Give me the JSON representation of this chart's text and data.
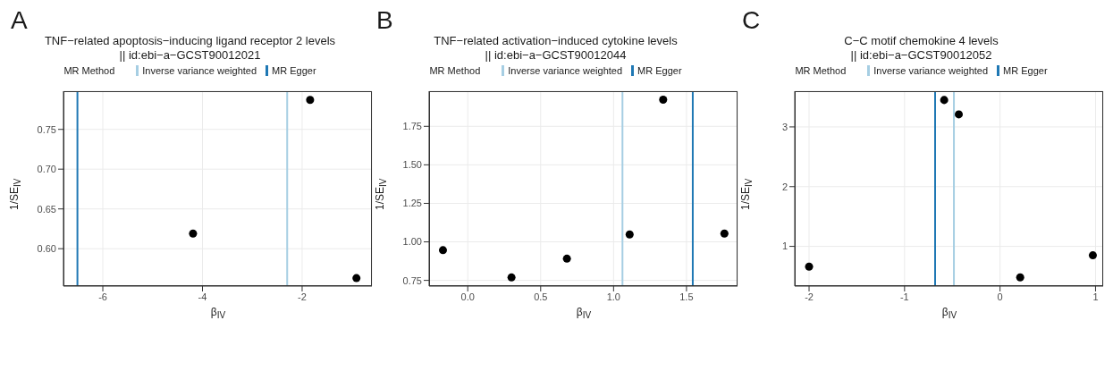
{
  "chart_data": [
    {
      "type": "scatter",
      "annotations": [
        "A"
      ],
      "title": "TNF−related apoptosis−inducing ligand receptor 2 levels",
      "subtitle": "|| id:ebi−a−GCST90012021",
      "legend_title": "MR Method",
      "legend": "top",
      "xlabel": "β$_{IV}$",
      "ylabel": "1/SE$_{IV}$",
      "x": [
        -4.19,
        -1.84,
        -0.91
      ],
      "series": [
        {
          "color": "#000000",
          "values": [
            0.619,
            0.787,
            0.563
          ]
        }
      ],
      "marker": "circle",
      "grid": true,
      "xlim": [
        -6.79,
        -0.6
      ],
      "xticks": [
        -6,
        -4,
        -2
      ],
      "ylim": [
        0.553,
        0.798
      ],
      "yticks": [
        {
          "value": 0.6,
          "label": "0.60"
        },
        0.65,
        {
          "value": 0.7,
          "label": "0.70"
        },
        0.75
      ],
      "ref_lines": [
        {
          "axis": "x",
          "value": -2.3,
          "label": "Inverse variance weighted",
          "color": "#a6cee3"
        },
        {
          "axis": "x",
          "value": -6.51,
          "label": "MR Egger",
          "color": "#1f78b4"
        }
      ]
    },
    {
      "type": "scatter",
      "annotations": [
        "B"
      ],
      "title": "TNF−related activation−induced cytokine levels",
      "subtitle": "|| id:ebi−a−GCST90012044",
      "legend_title": "MR Method",
      "legend": "top",
      "xlabel": "β$_{IV}$",
      "ylabel": "1/SE$_{IV}$",
      "x": [
        -0.17,
        0.3,
        0.68,
        1.11,
        1.34,
        1.76
      ],
      "series": [
        {
          "color": "#000000",
          "values": [
            0.946,
            0.769,
            0.891,
            1.048,
            1.923,
            1.054
          ]
        }
      ],
      "marker": "circle",
      "grid": true,
      "xlim": [
        -0.265,
        1.85
      ],
      "xticks": [
        {
          "value": 0,
          "label": "0.0"
        },
        0.5,
        {
          "value": 1,
          "label": "1.0"
        },
        1.5
      ],
      "ylim": [
        0.713,
        1.978
      ],
      "yticks": [
        0.75,
        {
          "value": 1,
          "label": "1.00"
        },
        1.25,
        {
          "value": 1.5,
          "label": "1.50"
        },
        1.75
      ],
      "ref_lines": [
        {
          "axis": "x",
          "value": 1.061,
          "label": "Inverse variance weighted",
          "color": "#a6cee3"
        },
        {
          "axis": "x",
          "value": 1.543,
          "label": "MR Egger",
          "color": "#1f78b4"
        }
      ]
    },
    {
      "type": "scatter",
      "annotations": [
        "C"
      ],
      "title": "C−C motif chemokine 4 levels",
      "subtitle": "|| id:ebi−a−GCST90012052",
      "legend_title": "MR Method",
      "legend": "top",
      "xlabel": "β$_{IV}$",
      "ylabel": "1/SE$_{IV}$",
      "x": [
        -2.0,
        -0.585,
        -0.432,
        0.211,
        0.972
      ],
      "series": [
        {
          "color": "#000000",
          "values": [
            0.66,
            3.45,
            3.21,
            0.48,
            0.85
          ]
        }
      ],
      "marker": "circle",
      "grid": true,
      "xlim": [
        -2.15,
        1.08
      ],
      "xticks": [
        -2,
        -1,
        0,
        1
      ],
      "ylim": [
        0.335,
        3.598
      ],
      "yticks": [
        1,
        2,
        3
      ],
      "ref_lines": [
        {
          "axis": "x",
          "value": -0.483,
          "label": "Inverse variance weighted",
          "color": "#a6cee3"
        },
        {
          "axis": "x",
          "value": -0.68,
          "label": "MR Egger",
          "color": "#1f78b4"
        }
      ]
    }
  ]
}
